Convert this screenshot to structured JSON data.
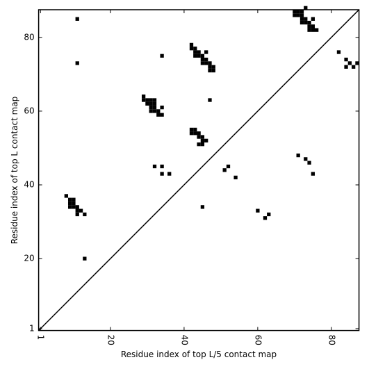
{
  "chart_data": {
    "type": "scatter",
    "marker": "square",
    "color": "#000000",
    "xlabel": "Residue index of top L/5 contact map",
    "ylabel": "Residue index of top L contact map",
    "xlim": [
      0.5,
      87.5
    ],
    "ylim": [
      0.5,
      87.5
    ],
    "xticks": [
      1,
      20,
      40,
      60,
      80
    ],
    "yticks": [
      1,
      20,
      40,
      60,
      80
    ],
    "diagonal": true,
    "x": [
      11,
      11,
      34,
      42,
      42,
      43,
      43,
      44,
      43,
      44,
      45,
      46,
      45,
      46,
      45,
      46,
      47,
      47,
      48,
      47,
      48,
      47,
      29,
      29,
      30,
      31,
      32,
      30,
      31,
      32,
      31,
      32,
      34,
      31,
      32,
      33,
      33,
      34,
      42,
      43,
      42,
      43,
      44,
      44,
      45,
      45,
      46,
      44,
      45,
      32,
      34,
      34,
      36,
      8,
      9,
      10,
      9,
      10,
      9,
      10,
      11,
      11,
      12,
      11,
      13,
      13,
      45,
      70,
      71,
      72,
      73,
      70,
      71,
      72,
      72,
      73,
      72,
      73,
      74,
      75,
      74,
      75,
      74,
      75,
      76,
      51,
      52,
      54,
      60,
      62,
      63,
      71,
      73,
      74,
      75,
      82,
      84,
      84,
      85,
      86,
      87
    ],
    "y": [
      85,
      73,
      75,
      78,
      77,
      77,
      76,
      76,
      75,
      75,
      75,
      76,
      74,
      74,
      73,
      73,
      73,
      72,
      72,
      71,
      71,
      63,
      64,
      63,
      63,
      63,
      63,
      62,
      62,
      62,
      61,
      61,
      61,
      60,
      60,
      60,
      59,
      59,
      55,
      55,
      54,
      54,
      54,
      53,
      53,
      52,
      52,
      51,
      51,
      45,
      45,
      43,
      43,
      37,
      36,
      36,
      35,
      35,
      34,
      34,
      34,
      33,
      33,
      32,
      32,
      20,
      34,
      87,
      87,
      87,
      88,
      86,
      86,
      86,
      85,
      85,
      84,
      84,
      84,
      85,
      83,
      83,
      82,
      82,
      82,
      44,
      45,
      42,
      33,
      31,
      32,
      48,
      47,
      46,
      43,
      76,
      74,
      72,
      73,
      72,
      73
    ]
  }
}
